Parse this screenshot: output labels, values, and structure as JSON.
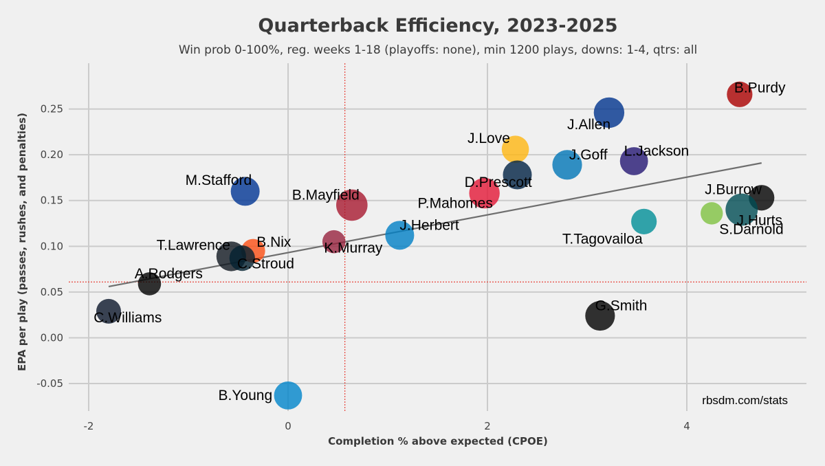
{
  "chart_data": {
    "type": "scatter",
    "title": "Quarterback Efficiency, 2023-2025",
    "subtitle": "Win prob 0-100%, reg. weeks 1-18 (playoffs: none), min 1200 plays, downs: 1-4, qtrs: all",
    "xlabel": "Completion % above expected (CPOE)",
    "ylabel": "EPA per play (passes, rushes, and penalties)",
    "xlim": [
      -2.2,
      5.2
    ],
    "ylim": [
      -0.08,
      0.3
    ],
    "x_ticks": [
      -2,
      0,
      2,
      4
    ],
    "x_tick_labels": [
      "-2",
      "0",
      "2",
      "4"
    ],
    "y_ticks": [
      -0.05,
      0.0,
      0.05,
      0.1,
      0.15,
      0.2,
      0.25
    ],
    "y_tick_labels": [
      "-0.05",
      "0.00",
      "0.05",
      "0.10",
      "0.15",
      "0.20",
      "0.25"
    ],
    "grid": true,
    "reference_lines": {
      "x_mean": 0.57,
      "y_mean": 0.061,
      "color": "#e8433a"
    },
    "trendline": {
      "x_start": -1.8,
      "y_start": 0.056,
      "x_end": 4.75,
      "y_end": 0.191,
      "color": "#6e6e6e"
    },
    "watermark": "rbsdm.com/stats",
    "points": [
      {
        "name": "B.Purdy",
        "x": 4.53,
        "y": 0.266,
        "size": 0.55,
        "color": "#aa0000",
        "label_dx": 0,
        "label_dy": -0.004,
        "anchor": "start"
      },
      {
        "name": "J.Allen",
        "x": 3.22,
        "y": 0.246,
        "size": 0.85,
        "color": "#00338d",
        "label_dx": -0.42,
        "label_dy": -0.018,
        "anchor": "start"
      },
      {
        "name": "J.Love",
        "x": 2.28,
        "y": 0.206,
        "size": 0.65,
        "color": "#ffb612",
        "label_dx": -0.48,
        "label_dy": 0.007,
        "anchor": "start"
      },
      {
        "name": "J.Goff",
        "x": 2.8,
        "y": 0.189,
        "size": 0.8,
        "color": "#0076b6",
        "label_dx": 0.02,
        "label_dy": 0.006,
        "anchor": "start"
      },
      {
        "name": "L.Jackson",
        "x": 3.47,
        "y": 0.193,
        "size": 0.7,
        "color": "#241773",
        "label_dx": -0.1,
        "label_dy": 0.006,
        "anchor": "start"
      },
      {
        "name": "D.Prescott",
        "x": 2.3,
        "y": 0.178,
        "size": 0.75,
        "color": "#002244",
        "label_dx": -0.53,
        "label_dy": -0.013,
        "anchor": "start"
      },
      {
        "name": "M.Stafford",
        "x": -0.43,
        "y": 0.16,
        "size": 0.75,
        "color": "#003594",
        "label_dx": -0.6,
        "label_dy": 0.007,
        "anchor": "start"
      },
      {
        "name": "B.Mayfield",
        "x": 0.64,
        "y": 0.145,
        "size": 0.9,
        "color": "#a71930",
        "label_dx": -0.6,
        "label_dy": 0.006,
        "anchor": "start"
      },
      {
        "name": "P.Mahomes",
        "x": 1.97,
        "y": 0.158,
        "size": 0.85,
        "color": "#e31837",
        "label_dx": -0.67,
        "label_dy": -0.016,
        "anchor": "start"
      },
      {
        "name": "J.Burrow",
        "x": 4.75,
        "y": 0.153,
        "size": 0.55,
        "color": "#000000",
        "label_dx": -0.57,
        "label_dy": 0.004,
        "anchor": "start"
      },
      {
        "name": "J.Hurts",
        "x": 4.55,
        "y": 0.14,
        "size": 0.95,
        "color": "#004c54",
        "label_dx": -0.05,
        "label_dy": -0.017,
        "anchor": "start"
      },
      {
        "name": "S.Darnold",
        "x": 4.25,
        "y": 0.136,
        "size": 0.35,
        "color": "#7fc241",
        "label_dx": 0,
        "label_dy": 0,
        "anchor": "start"
      },
      {
        "name": "T.Tagovailoa",
        "x": 3.57,
        "y": 0.127,
        "size": 0.55,
        "color": "#008e97",
        "label_dx": -0.68,
        "label_dy": -0.014,
        "anchor": "end"
      },
      {
        "name": "J.Herbert",
        "x": 1.12,
        "y": 0.112,
        "size": 0.75,
        "color": "#0080c6",
        "label_dx": 0,
        "label_dy": 0.006,
        "anchor": "start"
      },
      {
        "name": "B.Nix",
        "x": -0.35,
        "y": 0.095,
        "size": 0.45,
        "color": "#fb4f14",
        "label_dx": 0,
        "label_dy": 0,
        "anchor": "start"
      },
      {
        "name": "K.Murray",
        "x": 0.46,
        "y": 0.105,
        "size": 0.4,
        "color": "#97233f",
        "label_dx": -0.1,
        "label_dy": -0.012,
        "anchor": "start"
      },
      {
        "name": "T.Lawrence",
        "x": -0.57,
        "y": 0.089,
        "size": 0.8,
        "color": "#101820",
        "label_dx": -0.75,
        "label_dy": 0.007,
        "anchor": "start"
      },
      {
        "name": "C.Stroud",
        "x": -0.46,
        "y": 0.087,
        "size": 0.55,
        "color": "#03202f",
        "label_dx": -0.05,
        "label_dy": -0.011,
        "anchor": "start"
      },
      {
        "name": "A.Rodgers",
        "x": -1.39,
        "y": 0.059,
        "size": 0.4,
        "color": "#000000",
        "label_dx": -0.15,
        "label_dy": 0.006,
        "anchor": "start"
      },
      {
        "name": "C.Williams",
        "x": -1.8,
        "y": 0.029,
        "size": 0.5,
        "color": "#0b162a",
        "label_dx": -0.15,
        "label_dy": -0.012,
        "anchor": "start"
      },
      {
        "name": "G.Smith",
        "x": 3.13,
        "y": 0.024,
        "size": 0.8,
        "color": "#000000",
        "label_dx": -0.05,
        "label_dy": 0.006,
        "anchor": "start"
      },
      {
        "name": "B.Young",
        "x": 0.0,
        "y": -0.063,
        "size": 0.7,
        "color": "#0085ca",
        "label_dx": -0.7,
        "label_dy": -0.005,
        "anchor": "start"
      }
    ]
  }
}
